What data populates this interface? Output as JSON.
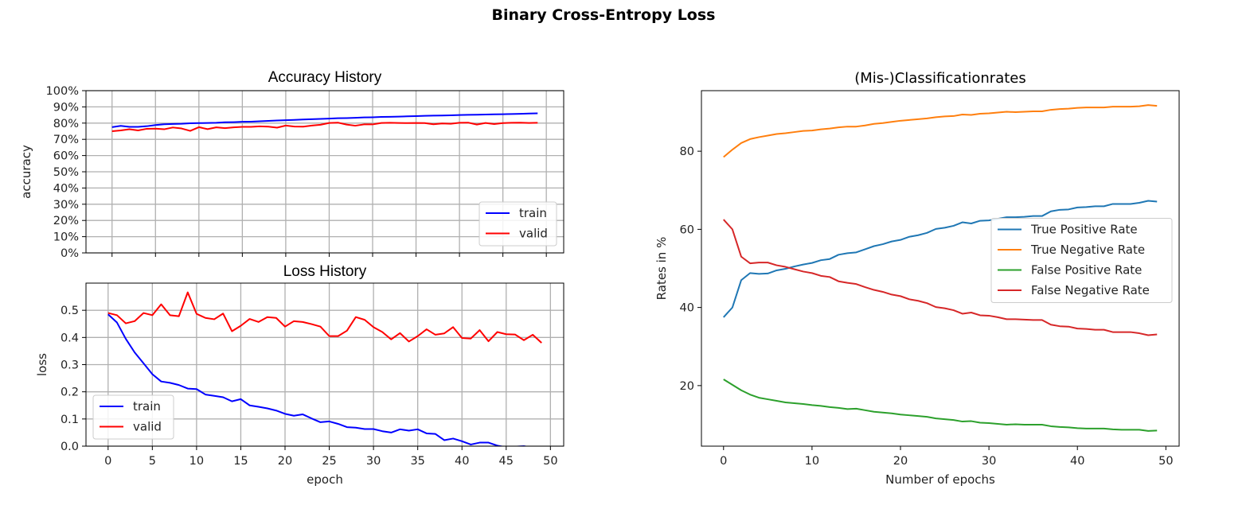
{
  "figure": {
    "title": "Binary Cross-Entropy Loss"
  },
  "chart_data": [
    {
      "type": "line",
      "title": "Accuracy History",
      "xlabel": "",
      "ylabel": "accuracy",
      "xlim": [
        -3,
        52
      ],
      "ylim": [
        0,
        1.0
      ],
      "grid": true,
      "legend": "lower right",
      "x_ticks": [
        0,
        5,
        10,
        15,
        20,
        25,
        30,
        35,
        40,
        45,
        50
      ],
      "x_tick_labels_visible": false,
      "y_ticks": [
        0,
        0.1,
        0.2,
        0.3,
        0.4,
        0.5,
        0.6,
        0.7,
        0.8,
        0.9,
        1.0
      ],
      "y_tick_labels": [
        "0%",
        "10%",
        "20%",
        "30%",
        "40%",
        "50%",
        "60%",
        "70%",
        "80%",
        "90%",
        "100%"
      ],
      "x": [
        0,
        1,
        2,
        3,
        4,
        5,
        6,
        7,
        8,
        9,
        10,
        11,
        12,
        13,
        14,
        15,
        16,
        17,
        18,
        19,
        20,
        21,
        22,
        23,
        24,
        25,
        26,
        27,
        28,
        29,
        30,
        31,
        32,
        33,
        34,
        35,
        36,
        37,
        38,
        39,
        40,
        41,
        42,
        43,
        44,
        45,
        46,
        47,
        48,
        49
      ],
      "series": [
        {
          "name": "train",
          "color": "#0000ff",
          "values": [
            0.775,
            0.783,
            0.777,
            0.777,
            0.781,
            0.788,
            0.793,
            0.795,
            0.796,
            0.799,
            0.8,
            0.801,
            0.802,
            0.805,
            0.806,
            0.808,
            0.809,
            0.811,
            0.814,
            0.816,
            0.818,
            0.82,
            0.822,
            0.824,
            0.826,
            0.828,
            0.83,
            0.831,
            0.833,
            0.835,
            0.836,
            0.838,
            0.839,
            0.84,
            0.842,
            0.843,
            0.845,
            0.846,
            0.847,
            0.848,
            0.85,
            0.851,
            0.852,
            0.853,
            0.854,
            0.855,
            0.856,
            0.857,
            0.859,
            0.86
          ]
        },
        {
          "name": "valid",
          "color": "#ff0000",
          "values": [
            0.75,
            0.755,
            0.762,
            0.755,
            0.765,
            0.766,
            0.762,
            0.773,
            0.767,
            0.752,
            0.775,
            0.763,
            0.774,
            0.769,
            0.774,
            0.777,
            0.777,
            0.78,
            0.778,
            0.772,
            0.785,
            0.779,
            0.778,
            0.785,
            0.79,
            0.801,
            0.803,
            0.791,
            0.784,
            0.792,
            0.792,
            0.801,
            0.802,
            0.801,
            0.8,
            0.801,
            0.8,
            0.793,
            0.798,
            0.796,
            0.802,
            0.803,
            0.791,
            0.801,
            0.794,
            0.8,
            0.802,
            0.803,
            0.801,
            0.802
          ]
        }
      ]
    },
    {
      "type": "line",
      "title": "Loss History",
      "xlabel": "epoch",
      "ylabel": "loss",
      "xlim": [
        -2.5,
        51.5
      ],
      "ylim": [
        0,
        0.6
      ],
      "grid": true,
      "legend": "lower left",
      "x_ticks": [
        0,
        5,
        10,
        15,
        20,
        25,
        30,
        35,
        40,
        45,
        50
      ],
      "x_tick_labels": [
        "0",
        "5",
        "10",
        "15",
        "20",
        "25",
        "30",
        "35",
        "40",
        "45",
        "50"
      ],
      "y_ticks": [
        0.0,
        0.1,
        0.2,
        0.3,
        0.4,
        0.5
      ],
      "y_tick_labels": [
        "0.0",
        "0.1",
        "0.2",
        "0.3",
        "0.4",
        "0.5"
      ],
      "x": [
        0,
        1,
        2,
        3,
        4,
        5,
        6,
        7,
        8,
        9,
        10,
        11,
        12,
        13,
        14,
        15,
        16,
        17,
        18,
        19,
        20,
        21,
        22,
        23,
        24,
        25,
        26,
        27,
        28,
        29,
        30,
        31,
        32,
        33,
        34,
        35,
        36,
        37,
        38,
        39,
        40,
        41,
        42,
        43,
        44,
        45,
        46,
        47,
        48,
        49
      ],
      "series": [
        {
          "name": "train",
          "color": "#0000ff",
          "values": [
            0.485,
            0.455,
            0.395,
            0.345,
            0.305,
            0.265,
            0.238,
            0.233,
            0.225,
            0.212,
            0.21,
            0.19,
            0.185,
            0.18,
            0.165,
            0.173,
            0.15,
            0.145,
            0.139,
            0.131,
            0.119,
            0.112,
            0.117,
            0.102,
            0.088,
            0.091,
            0.082,
            0.07,
            0.068,
            0.063,
            0.063,
            0.055,
            0.05,
            0.062,
            0.057,
            0.062,
            0.047,
            0.045,
            0.022,
            0.028,
            0.018,
            0.006,
            0.013,
            0.013,
            0.002,
            -0.004,
            -0.002,
            0.0,
            -0.006,
            -0.005
          ]
        },
        {
          "name": "valid",
          "color": "#ff0000",
          "values": [
            0.49,
            0.482,
            0.452,
            0.46,
            0.49,
            0.482,
            0.522,
            0.482,
            0.478,
            0.566,
            0.487,
            0.472,
            0.467,
            0.488,
            0.423,
            0.443,
            0.468,
            0.457,
            0.475,
            0.472,
            0.44,
            0.46,
            0.457,
            0.449,
            0.44,
            0.405,
            0.405,
            0.425,
            0.475,
            0.465,
            0.438,
            0.42,
            0.393,
            0.416,
            0.385,
            0.405,
            0.43,
            0.41,
            0.415,
            0.438,
            0.398,
            0.396,
            0.427,
            0.386,
            0.42,
            0.412,
            0.411,
            0.39,
            0.41,
            0.38
          ]
        }
      ]
    },
    {
      "type": "line",
      "title": "(Mis-)Classificationrates",
      "xlabel": "Number of epochs",
      "ylabel": "Rates in %",
      "xlim": [
        -2.5,
        51.5
      ],
      "ylim": [
        4.5,
        95.5
      ],
      "grid": false,
      "legend": "center right",
      "x_ticks": [
        0,
        10,
        20,
        30,
        40,
        50
      ],
      "x_tick_labels": [
        "0",
        "10",
        "20",
        "30",
        "40",
        "50"
      ],
      "y_ticks": [
        20,
        40,
        60,
        80
      ],
      "y_tick_labels": [
        "20",
        "40",
        "60",
        "80"
      ],
      "x": [
        0,
        1,
        2,
        3,
        4,
        5,
        6,
        7,
        8,
        9,
        10,
        11,
        12,
        13,
        14,
        15,
        16,
        17,
        18,
        19,
        20,
        21,
        22,
        23,
        24,
        25,
        26,
        27,
        28,
        29,
        30,
        31,
        32,
        33,
        34,
        35,
        36,
        37,
        38,
        39,
        40,
        41,
        42,
        43,
        44,
        45,
        46,
        47,
        48,
        49
      ],
      "series": [
        {
          "name": "True Positive Rate",
          "color": "#1f77b4",
          "values": [
            37.5,
            40.0,
            47.0,
            48.8,
            48.6,
            48.7,
            49.5,
            49.9,
            50.5,
            51.0,
            51.4,
            52.1,
            52.4,
            53.5,
            53.9,
            54.1,
            54.9,
            55.7,
            56.2,
            56.9,
            57.3,
            58.1,
            58.5,
            59.1,
            60.1,
            60.4,
            60.9,
            61.8,
            61.5,
            62.2,
            62.3,
            62.7,
            63.1,
            63.1,
            63.2,
            63.4,
            63.4,
            64.6,
            65.0,
            65.1,
            65.6,
            65.7,
            65.9,
            65.9,
            66.5,
            66.5,
            66.5,
            66.8,
            67.3,
            67.1
          ]
        },
        {
          "name": "True Negative Rate",
          "color": "#ff7f0e",
          "values": [
            78.5,
            80.4,
            82.1,
            83.1,
            83.6,
            84.0,
            84.4,
            84.6,
            84.9,
            85.2,
            85.3,
            85.6,
            85.8,
            86.1,
            86.3,
            86.3,
            86.6,
            87.0,
            87.2,
            87.5,
            87.8,
            88.0,
            88.2,
            88.4,
            88.7,
            88.9,
            89.0,
            89.4,
            89.3,
            89.6,
            89.7,
            89.9,
            90.1,
            90.0,
            90.1,
            90.2,
            90.2,
            90.6,
            90.8,
            90.9,
            91.1,
            91.2,
            91.2,
            91.2,
            91.4,
            91.4,
            91.4,
            91.5,
            91.8,
            91.6
          ]
        },
        {
          "name": "False Positive Rate",
          "color": "#2ca02c",
          "values": [
            21.6,
            20.2,
            18.8,
            17.7,
            16.9,
            16.5,
            16.1,
            15.7,
            15.5,
            15.3,
            15.0,
            14.8,
            14.5,
            14.3,
            14.0,
            14.1,
            13.7,
            13.3,
            13.1,
            12.9,
            12.6,
            12.4,
            12.2,
            12.0,
            11.6,
            11.4,
            11.2,
            10.8,
            10.9,
            10.5,
            10.4,
            10.2,
            10.0,
            10.1,
            10.0,
            10.0,
            10.0,
            9.6,
            9.4,
            9.3,
            9.1,
            9.0,
            9.0,
            9.0,
            8.8,
            8.7,
            8.7,
            8.7,
            8.4,
            8.5
          ]
        },
        {
          "name": "False Negative Rate",
          "color": "#d62728",
          "values": [
            62.5,
            60.0,
            53.0,
            51.3,
            51.5,
            51.5,
            50.8,
            50.4,
            49.8,
            49.2,
            48.8,
            48.1,
            47.8,
            46.7,
            46.3,
            46.0,
            45.2,
            44.5,
            44.0,
            43.3,
            42.9,
            42.1,
            41.7,
            41.1,
            40.1,
            39.8,
            39.3,
            38.4,
            38.7,
            38.0,
            37.9,
            37.5,
            37.0,
            37.0,
            36.9,
            36.8,
            36.8,
            35.6,
            35.2,
            35.1,
            34.6,
            34.5,
            34.3,
            34.3,
            33.7,
            33.7,
            33.7,
            33.4,
            32.9,
            33.1
          ]
        }
      ]
    }
  ]
}
